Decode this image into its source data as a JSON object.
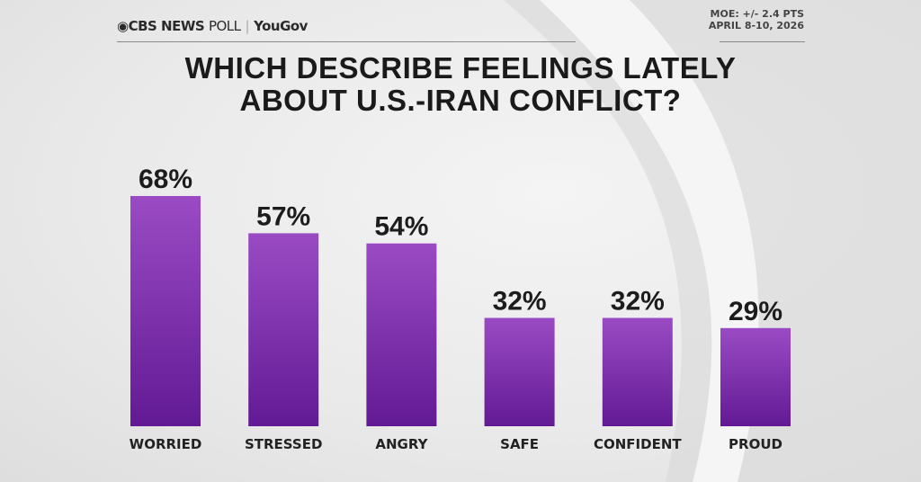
{
  "header": {
    "brand": "CBS NEWS",
    "brand_suffix": "POLL",
    "partner": "YouGov",
    "moe": "MOE: +/- 2.4 PTS",
    "dates": "APRIL 8-10, 2026"
  },
  "chart_data": {
    "type": "bar",
    "title": "WHICH DESCRIBE FEELINGS LATELY ABOUT U.S.-IRAN CONFLICT?",
    "title_lines": [
      "WHICH DESCRIBE FEELINGS LATELY",
      "ABOUT U.S.-IRAN CONFLICT?"
    ],
    "categories": [
      "WORRIED",
      "STRESSED",
      "ANGRY",
      "SAFE",
      "CONFIDENT",
      "PROUD"
    ],
    "values": [
      68,
      57,
      54,
      32,
      32,
      29
    ],
    "value_labels": [
      "68%",
      "57%",
      "54%",
      "32%",
      "32%",
      "29%"
    ],
    "unit": "%",
    "ylim": [
      0,
      100
    ],
    "grid": false,
    "legend": "none",
    "colors": {
      "bar_top": "#9a4bc4",
      "bar_bottom": "#621a94"
    }
  }
}
